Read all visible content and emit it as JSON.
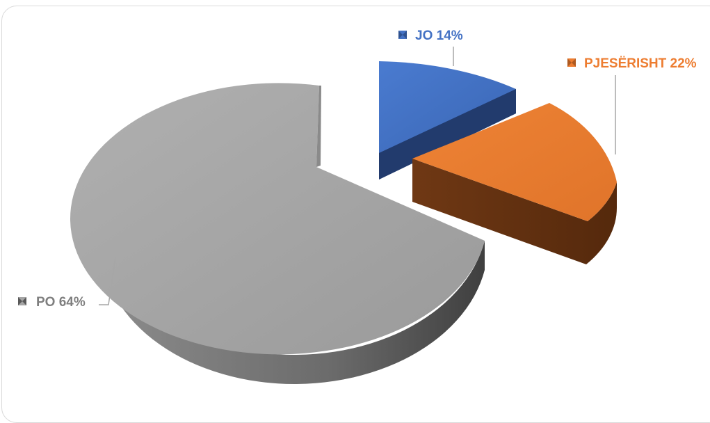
{
  "chart_data": {
    "type": "pie",
    "style": "3d-exploded",
    "slices": [
      {
        "label": "JO",
        "value": 14,
        "color": "#4472c4",
        "label_text": "JO 14%"
      },
      {
        "label": "PJESËRISHT",
        "value": 22,
        "color": "#ed7d31",
        "label_text": "PJESËRISHT 22%"
      },
      {
        "label": "PO",
        "value": 64,
        "color": "#a5a5a5",
        "label_text": "PO 64%"
      }
    ]
  }
}
